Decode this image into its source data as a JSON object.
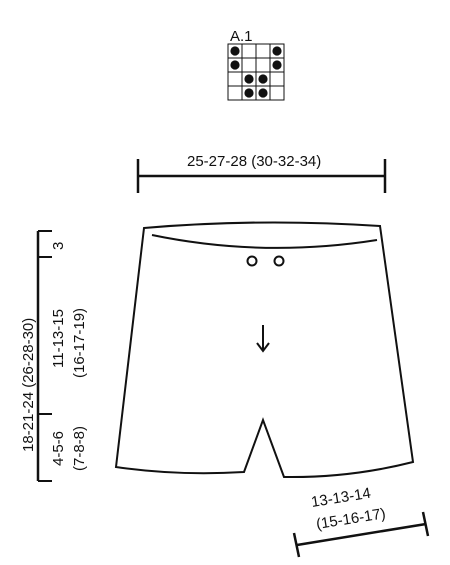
{
  "chart": {
    "label": "A.1",
    "rows": [
      [
        1,
        0,
        0,
        1
      ],
      [
        1,
        0,
        0,
        1
      ],
      [
        0,
        1,
        1,
        0
      ],
      [
        0,
        1,
        1,
        0
      ]
    ]
  },
  "measurements": {
    "width_top": "25-27-28 (30-32-34)",
    "total_height": "18-21-24 (26-28-30)",
    "waistband": "3",
    "body_line1": "11-13-15",
    "body_line2": "(16-17-19)",
    "leg_line1": "4-5-6",
    "leg_line2": "(7-8-8)",
    "leg_width_line1": "13-13-14",
    "leg_width_line2": "(15-16-17)"
  },
  "colors": {
    "ink": "#111111",
    "background": "#ffffff"
  },
  "icons": {
    "direction": "arrow-down-icon"
  }
}
